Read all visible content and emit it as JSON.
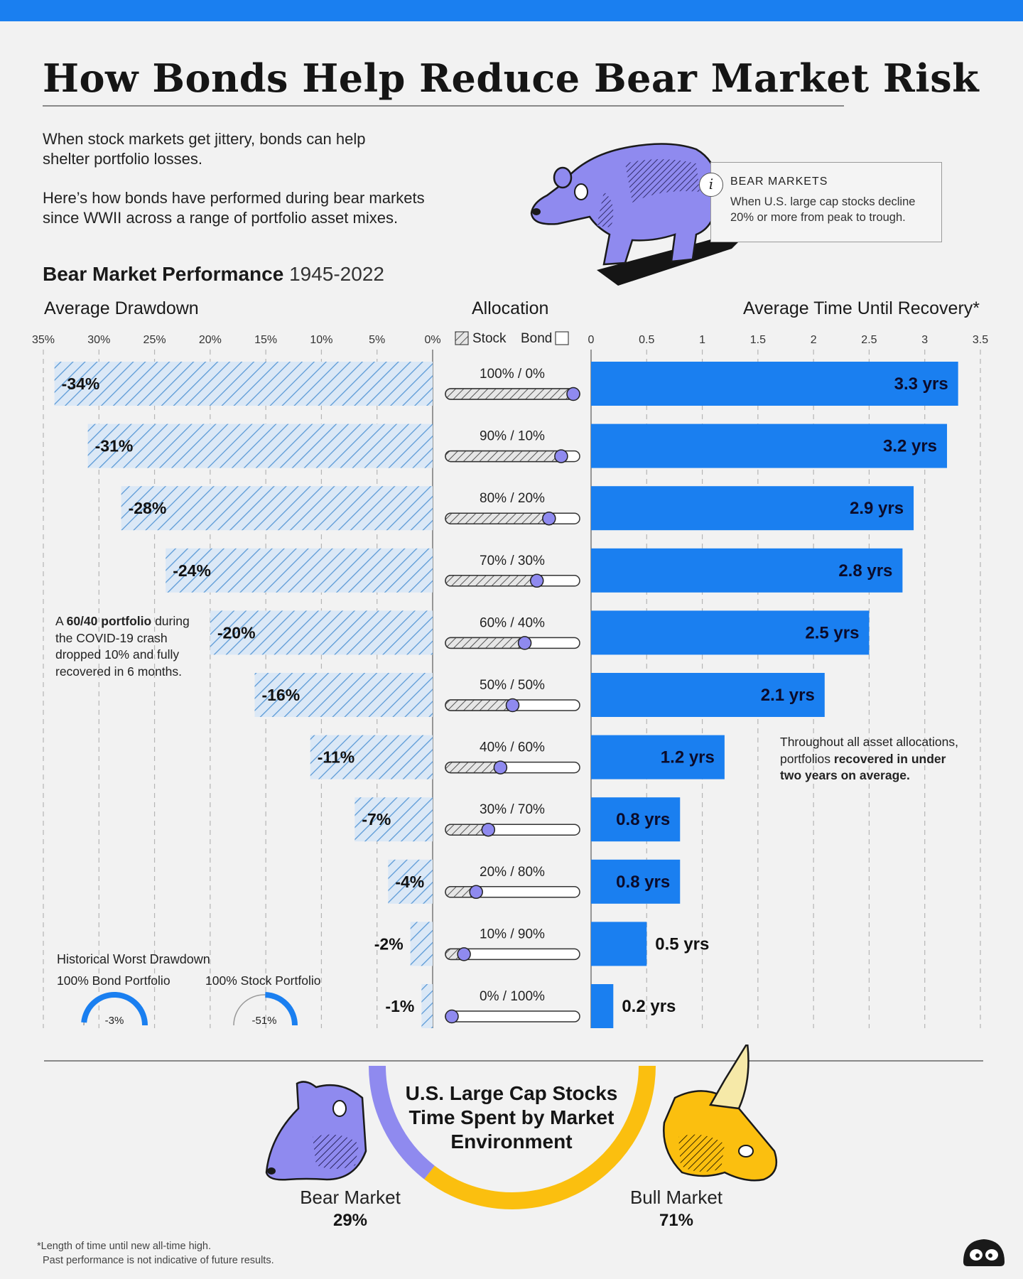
{
  "title": "How Bonds Help Reduce Bear Market Risk",
  "intro": {
    "p1_line1": "When stock markets get jittery, bonds can help",
    "p1_line2": "shelter portfolio losses.",
    "p2_line1": "Here’s how bonds have performed during bear markets",
    "p2_line2": "since WWII across a range of portfolio asset mixes."
  },
  "infobox": {
    "icon_glyph": "i",
    "heading": "BEAR MARKETS",
    "line1": "When U.S. large cap stocks decline",
    "line2": "20% or more from peak to trough."
  },
  "subhead": {
    "bold": "Bear Market Performance",
    "years": "1945-2022"
  },
  "columns": {
    "drawdown": "Average Drawdown",
    "allocation": "Allocation",
    "recovery": "Average Time Until Recovery*",
    "legend_stock": "Stock",
    "legend_bond": "Bond"
  },
  "colors": {
    "blue": "#1a7ff0",
    "hatch": "#5b9ad6",
    "hatch_bg": "#dbe8f6",
    "purple": "#8f8aef",
    "gold": "#fbbf0f"
  },
  "chart_data": {
    "type": "bar",
    "categories": [
      "100% / 0%",
      "90% / 10%",
      "80% / 20%",
      "70% / 30%",
      "60% / 40%",
      "50% / 50%",
      "40% / 60%",
      "30% / 70%",
      "20% / 80%",
      "10% / 90%",
      "0% / 100%"
    ],
    "stock_share": [
      1.0,
      0.9,
      0.8,
      0.7,
      0.6,
      0.5,
      0.4,
      0.3,
      0.2,
      0.1,
      0.0
    ],
    "drawdown": {
      "values": [
        34,
        31,
        28,
        24,
        20,
        16,
        11,
        7,
        4,
        2,
        1
      ],
      "labels": [
        "-34%",
        "-31%",
        "-28%",
        "-24%",
        "-20%",
        "-16%",
        "-11%",
        "-7%",
        "-4%",
        "-2%",
        "-1%"
      ],
      "ticks": [
        "35%",
        "30%",
        "25%",
        "20%",
        "15%",
        "10%",
        "5%",
        "0%"
      ],
      "xlim": [
        0,
        35
      ]
    },
    "recovery": {
      "values": [
        3.3,
        3.2,
        2.9,
        2.8,
        2.5,
        2.1,
        1.2,
        0.8,
        0.8,
        0.5,
        0.2
      ],
      "labels": [
        "3.3 yrs",
        "3.2 yrs",
        "2.9 yrs",
        "2.8 yrs",
        "2.5 yrs",
        "2.1 yrs",
        "1.2 yrs",
        "0.8 yrs",
        "0.8 yrs",
        "0.5 yrs",
        "0.2 yrs"
      ],
      "ticks": [
        "0",
        "0.5",
        "1",
        "1.5",
        "2",
        "2.5",
        "3",
        "3.5"
      ],
      "xlim": [
        0,
        3.5
      ]
    },
    "grid": true
  },
  "notes": {
    "covid_line1": "A",
    "covid_bold": "60/40 portfolio",
    "covid_line1b": "during",
    "covid_line2": "the COVID-19 crash",
    "covid_line3": "dropped 10% and fully",
    "covid_line4": "recovered in 6 months.",
    "recov_line1": "Throughout all asset allocations,",
    "recov_line2a": "portfolios",
    "recov_line2b": "recovered in under",
    "recov_line3": "two years on average."
  },
  "worst": {
    "title": "Historical Worst Drawdown",
    "bond_label": "100% Bond Portfolio",
    "stock_label": "100% Stock Portfolio",
    "bond_value": "-3%",
    "stock_value": "-51%",
    "bond_fraction": 0.03,
    "stock_fraction": 0.51
  },
  "market_time": {
    "title_line1": "U.S. Large Cap Stocks",
    "title_line2": "Time Spent by Market",
    "title_line3": "Environment",
    "bear_label": "Bear Market",
    "bear_value": "29%",
    "bull_label": "Bull Market",
    "bull_value": "71%",
    "bear_share": 0.29,
    "bull_share": 0.71
  },
  "footnote": {
    "line1": "*Length of time until new all-time high.",
    "line2": "Past performance is not indicative of future results."
  }
}
